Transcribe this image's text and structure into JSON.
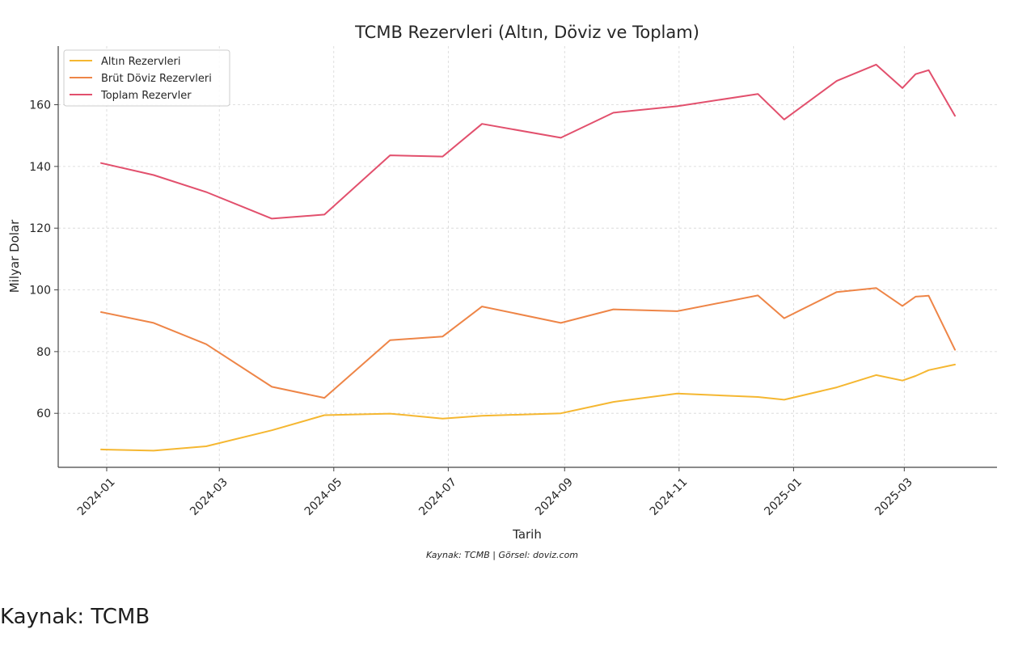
{
  "chart_data": {
    "type": "line",
    "title": "TCMB Rezervleri (Altın, Döviz ve Toplam)",
    "xlabel": "Tarih",
    "ylabel": "Milyar Dolar",
    "ylim": [
      42.5,
      179
    ],
    "yticks": [
      60,
      80,
      100,
      120,
      140,
      160
    ],
    "xticks": [
      "2024-01",
      "2024-03",
      "2024-05",
      "2024-07",
      "2024-09",
      "2024-11",
      "2025-01",
      "2025-03"
    ],
    "grid": true,
    "legend": "top-left",
    "source_note": "Kaynak: TCMB | Görsel: doviz.com",
    "x": [
      "2023-12-29",
      "2024-01-26",
      "2024-02-23",
      "2024-03-29",
      "2024-04-26",
      "2024-05-31",
      "2024-06-14",
      "2024-06-28",
      "2024-07-19",
      "2024-08-30",
      "2024-09-27",
      "2024-10-31",
      "2024-12-13",
      "2024-12-27",
      "2025-01-24",
      "2025-02-14",
      "2025-02-28",
      "2025-03-07",
      "2025-03-14",
      "2025-03-28"
    ],
    "series": [
      {
        "name": "Altın Rezervleri",
        "color": "#f5b731",
        "values": [
          48.3,
          47.9,
          49.3,
          54.5,
          59.4,
          59.9,
          59.1,
          58.3,
          59.2,
          60.0,
          63.7,
          66.4,
          65.3,
          64.4,
          68.4,
          72.4,
          70.6,
          72.1,
          74.0,
          75.8
        ]
      },
      {
        "name": "Brüt Döviz Rezervleri",
        "color": "#ee8547",
        "values": [
          92.8,
          89.3,
          82.4,
          68.6,
          65.0,
          83.7,
          84.3,
          84.9,
          94.6,
          89.3,
          93.7,
          93.1,
          98.2,
          90.8,
          99.3,
          100.6,
          94.8,
          97.8,
          98.1,
          80.6
        ]
      },
      {
        "name": "Toplam Rezervler",
        "color": "#e2506d",
        "values": [
          141.1,
          137.2,
          131.7,
          123.1,
          124.4,
          143.6,
          143.4,
          143.2,
          153.8,
          149.3,
          157.4,
          159.5,
          163.5,
          155.2,
          167.7,
          173.0,
          165.4,
          169.9,
          171.2,
          156.4
        ]
      }
    ]
  },
  "caption": "Kaynak: TCMB"
}
